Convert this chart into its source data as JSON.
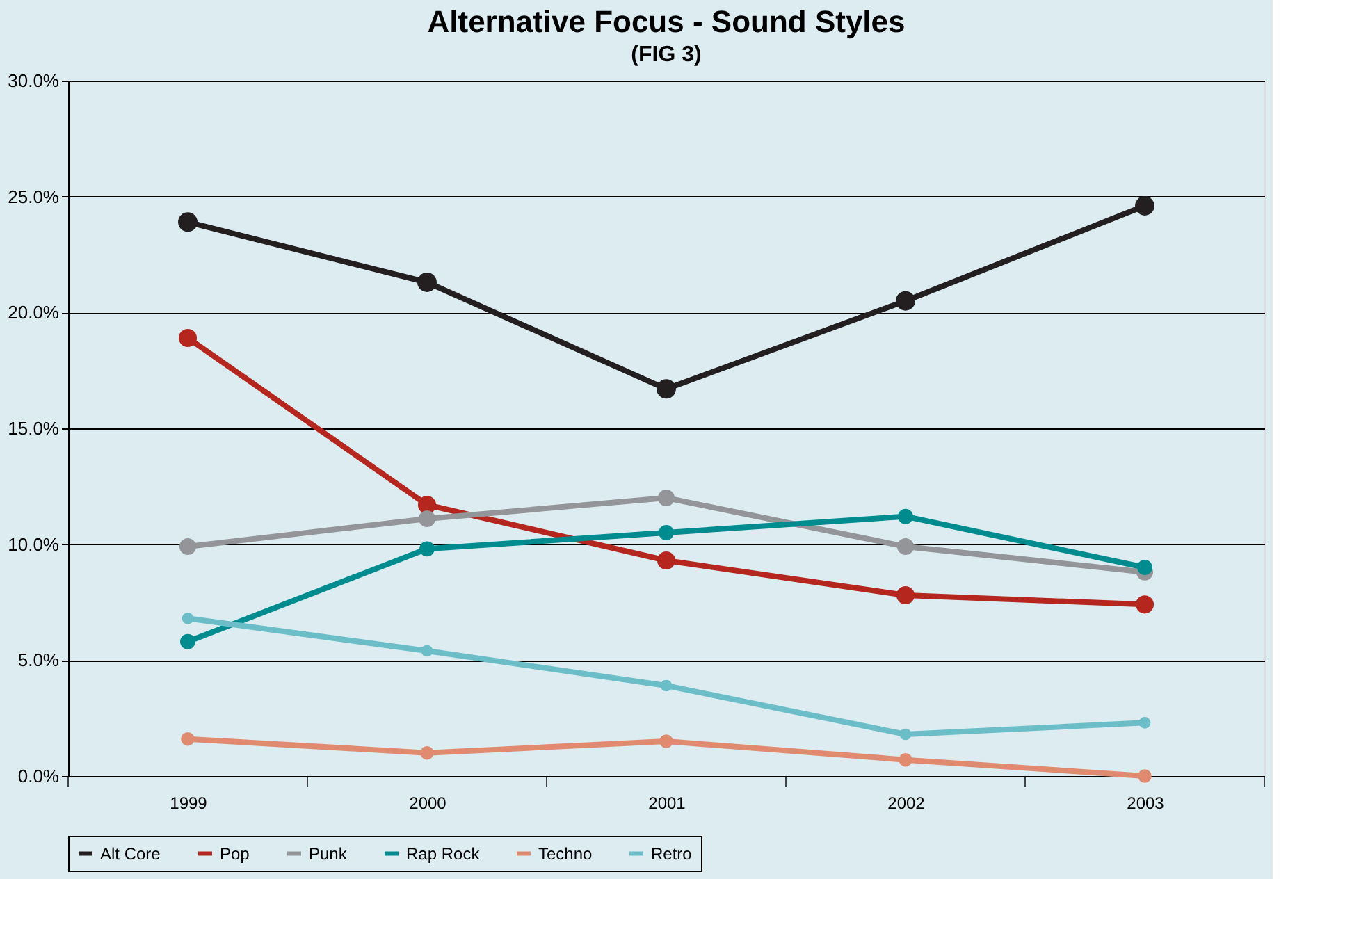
{
  "chart_data": {
    "type": "line",
    "title": "Alternative Focus - Sound Styles",
    "subtitle": "(FIG 3)",
    "categories": [
      "1999",
      "2000",
      "2001",
      "2002",
      "2003"
    ],
    "series": [
      {
        "name": "Alt Core",
        "color": "#231f20",
        "values": [
          23.9,
          21.3,
          16.7,
          20.5,
          24.6
        ]
      },
      {
        "name": "Pop",
        "color": "#b5261e",
        "values": [
          18.9,
          11.7,
          9.3,
          7.8,
          7.4
        ]
      },
      {
        "name": "Punk",
        "color": "#939598",
        "values": [
          9.9,
          11.1,
          12.0,
          9.9,
          8.8
        ]
      },
      {
        "name": "Rap Rock",
        "color": "#008b8f",
        "values": [
          5.8,
          9.8,
          10.5,
          11.2,
          9.0
        ]
      },
      {
        "name": "Techno",
        "color": "#e08a70",
        "values": [
          1.6,
          1.0,
          1.5,
          0.7,
          0.0
        ]
      },
      {
        "name": "Retro",
        "color": "#6bbdc8",
        "values": [
          6.8,
          5.4,
          3.9,
          1.8,
          2.3
        ]
      }
    ],
    "ylim": [
      0,
      30
    ],
    "yticks": [
      {
        "value": 0,
        "label": "0.0%"
      },
      {
        "value": 5,
        "label": "5.0%"
      },
      {
        "value": 10,
        "label": "10.0%"
      },
      {
        "value": 15,
        "label": "15.0%"
      },
      {
        "value": 20,
        "label": "20.0%"
      },
      {
        "value": 25,
        "label": "25.0%"
      },
      {
        "value": 30,
        "label": "30.0%"
      }
    ],
    "grid": "y",
    "legend": "bottom",
    "marker": "circle",
    "line_style": "solid"
  }
}
